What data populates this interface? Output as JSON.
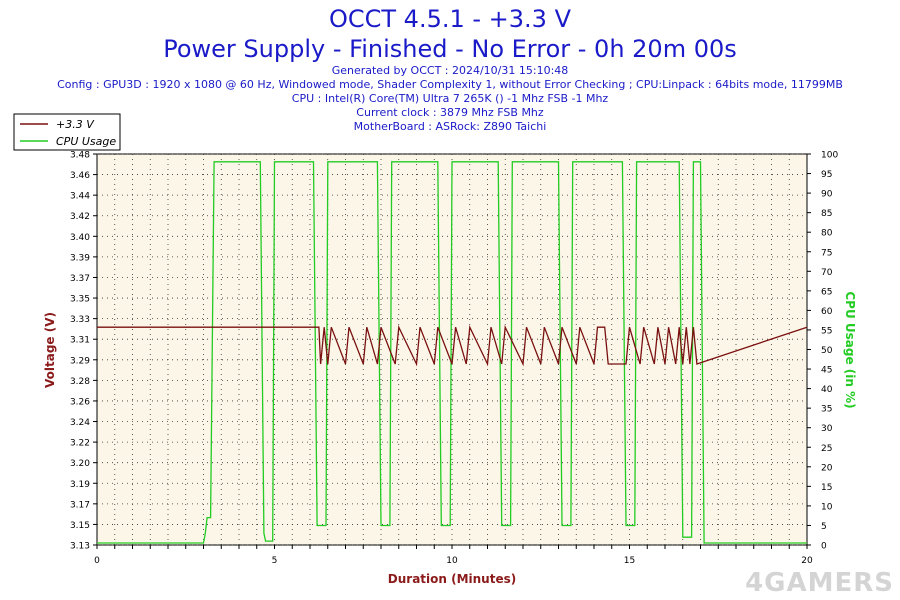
{
  "header": {
    "title": "OCCT 4.5.1 - +3.3 V",
    "subtitle": "Power Supply - Finished - No Error - 0h 20m 00s",
    "info": [
      "Generated by OCCT : 2024/10/31 15:10:48",
      "Config : GPU3D : 1920 x 1080 @ 60 Hz, Windowed mode, Shader Complexity 1, without Error Checking ; CPU:Linpack : 64bits mode, 11799MB",
      "CPU : Intel(R) Core(TM) Ultra 7 265K () -1 Mhz FSB -1 Mhz",
      "Current clock : 3879 Mhz FSB  Mhz",
      "MotherBoard : ASRock: Z890 Taichi"
    ]
  },
  "watermark": "4GAMERS",
  "colors": {
    "voltage": "#7a1010",
    "cpu": "#22cc22",
    "plot_bg": "#fbf6e7",
    "title": "#1a1ac8",
    "axis_label": "#8b1a1a"
  },
  "chart_data": {
    "type": "line",
    "xlabel": "Duration (Minutes)",
    "ylabel_left": "Voltage (V)",
    "ylabel_right": "CPU Usage (in %)",
    "xlim": [
      0,
      20
    ],
    "ylim_left": [
      3.13,
      3.48
    ],
    "ylim_right": [
      0,
      100
    ],
    "x_ticks": [
      "0",
      "5",
      "10",
      "15",
      "20"
    ],
    "y_left_ticks": [
      "3.13",
      "3.15",
      "3.17",
      "3.19",
      "3.20",
      "3.22",
      "3.24",
      "3.26",
      "3.28",
      "3.29",
      "3.31",
      "3.33",
      "3.35",
      "3.37",
      "3.39",
      "3.40",
      "3.42",
      "3.44",
      "3.46",
      "3.48"
    ],
    "y_right_ticks": [
      "0",
      "5",
      "10",
      "15",
      "20",
      "25",
      "30",
      "35",
      "40",
      "45",
      "50",
      "55",
      "60",
      "65",
      "70",
      "75",
      "80",
      "85",
      "90",
      "95",
      "100"
    ],
    "legend": {
      "placement": "top-left",
      "entries": [
        "+3.3 V",
        "CPU Usage"
      ]
    },
    "grid": true,
    "series": [
      {
        "name": "+3.3 V",
        "axis": "left",
        "x": [
          0,
          6.25,
          6.3,
          6.4,
          6.5,
          6.6,
          7.0,
          7.1,
          7.5,
          7.6,
          7.9,
          8.0,
          8.4,
          8.5,
          9.0,
          9.1,
          9.5,
          9.6,
          10.0,
          10.1,
          10.4,
          10.5,
          11.0,
          11.1,
          11.4,
          11.5,
          12.0,
          12.1,
          12.5,
          12.6,
          13.0,
          13.1,
          13.5,
          13.6,
          14.0,
          14.1,
          14.3,
          14.4,
          14.9,
          15.0,
          15.3,
          15.4,
          15.7,
          15.8,
          16.0,
          16.1,
          16.3,
          16.4,
          16.5,
          16.6,
          16.7,
          16.8,
          16.9,
          20
        ],
        "values": [
          3.325,
          3.325,
          3.292,
          3.325,
          3.292,
          3.325,
          3.292,
          3.325,
          3.292,
          3.325,
          3.292,
          3.325,
          3.292,
          3.325,
          3.292,
          3.325,
          3.292,
          3.325,
          3.292,
          3.325,
          3.292,
          3.325,
          3.292,
          3.325,
          3.292,
          3.325,
          3.292,
          3.325,
          3.292,
          3.325,
          3.292,
          3.325,
          3.292,
          3.325,
          3.292,
          3.325,
          3.325,
          3.292,
          3.292,
          3.325,
          3.292,
          3.325,
          3.292,
          3.325,
          3.292,
          3.325,
          3.292,
          3.325,
          3.292,
          3.325,
          3.292,
          3.325,
          3.292,
          3.325
        ]
      },
      {
        "name": "CPU Usage",
        "axis": "right",
        "x": [
          0,
          3.0,
          3.05,
          3.1,
          3.2,
          3.3,
          4.6,
          4.7,
          4.75,
          4.95,
          5.0,
          6.1,
          6.2,
          6.25,
          6.45,
          6.5,
          7.9,
          8.0,
          8.05,
          8.25,
          8.3,
          9.6,
          9.7,
          9.75,
          9.95,
          10.0,
          11.3,
          11.4,
          11.45,
          11.65,
          11.7,
          13.0,
          13.1,
          13.15,
          13.35,
          13.4,
          14.8,
          14.9,
          14.95,
          15.15,
          15.2,
          16.4,
          16.5,
          16.55,
          16.75,
          16.8,
          17.0,
          17.1,
          20
        ],
        "values": [
          0.5,
          0.5,
          3,
          7,
          7,
          98,
          98,
          3,
          1,
          1,
          98,
          98,
          5,
          5,
          5,
          98,
          98,
          5,
          5,
          5,
          98,
          98,
          5,
          5,
          5,
          98,
          98,
          5,
          5,
          5,
          98,
          98,
          5,
          5,
          5,
          98,
          98,
          5,
          5,
          5,
          98,
          98,
          2,
          2,
          2,
          98,
          98,
          0.5,
          0.5
        ]
      }
    ]
  }
}
